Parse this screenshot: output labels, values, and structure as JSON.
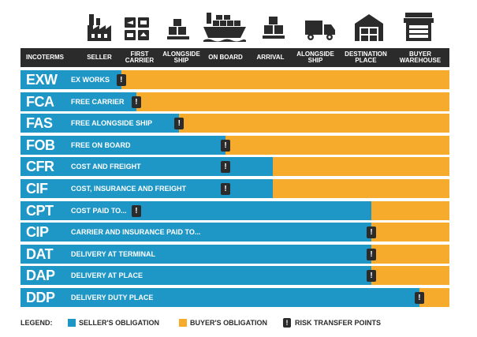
{
  "colors": {
    "seller": "#1e97c6",
    "buyer": "#f6ab2c",
    "header": "#2b2b2b",
    "risk_marker": "#2b2b2b"
  },
  "stages": [
    {
      "key": "seller",
      "label": "SELLER",
      "icon": "factory-icon"
    },
    {
      "key": "first_carrier",
      "label": "FIRST\nCARRIER",
      "icon": "freight-boxes-icon"
    },
    {
      "key": "alongside_ship_origin",
      "label": "ALONGSIDE\nSHIP",
      "icon": "boxes-on-dock-icon"
    },
    {
      "key": "on_board",
      "label": "ON BOARD",
      "icon": "cargo-ship-icon"
    },
    {
      "key": "arrival",
      "label": "ARRIVAL",
      "icon": "boxes-on-dock-icon"
    },
    {
      "key": "alongside_ship_destination",
      "label": "ALONGSIDE\nSHIP",
      "icon": "delivery-truck-icon"
    },
    {
      "key": "destination_place",
      "label": "DESTINATION\nPLACE",
      "icon": "warehouse-icon"
    },
    {
      "key": "buyer_warehouse",
      "label": "BUYER\nWAREHOUSE",
      "icon": "storefront-icon"
    }
  ],
  "header": {
    "incoterms_label": "INCOTERMS"
  },
  "incoterms": [
    {
      "code": "EXW",
      "description": "EX WORKS",
      "seller_share": 0.235,
      "risk_point": 0.235
    },
    {
      "code": "FCA",
      "description": "FREE CARRIER",
      "seller_share": 0.27,
      "risk_point": 0.27
    },
    {
      "code": "FAS",
      "description": "FREE ALONGSIDE SHIP",
      "seller_share": 0.37,
      "risk_point": 0.37
    },
    {
      "code": "FOB",
      "description": "FREE ON BOARD",
      "seller_share": 0.478,
      "risk_point": 0.478
    },
    {
      "code": "CFR",
      "description": "COST AND FREIGHT",
      "seller_share": 0.588,
      "risk_point": 0.478
    },
    {
      "code": "CIF",
      "description": "COST, INSURANCE AND FREIGHT",
      "seller_share": 0.588,
      "risk_point": 0.478
    },
    {
      "code": "CPT",
      "description": "COST PAID TO...",
      "seller_share": 0.818,
      "risk_point": 0.27
    },
    {
      "code": "CIP",
      "description": "CARRIER AND INSURANCE PAID TO...",
      "seller_share": 0.818,
      "risk_point": 0.818
    },
    {
      "code": "DAT",
      "description": "DELIVERY AT TERMINAL",
      "seller_share": 0.818,
      "risk_point": 0.818
    },
    {
      "code": "DAP",
      "description": "DELIVERY AT PLACE",
      "seller_share": 0.818,
      "risk_point": 0.818
    },
    {
      "code": "DDP",
      "description": "DELIVERY DUTY PLACE",
      "seller_share": 0.93,
      "risk_point": 0.93
    }
  ],
  "risk_marker_glyph": "!",
  "legend": {
    "title": "LEGEND:",
    "seller": "SELLER'S OBLIGATION",
    "buyer": "BUYER'S OBLIGATION",
    "risk": "RISK TRANSFER POINTS"
  }
}
